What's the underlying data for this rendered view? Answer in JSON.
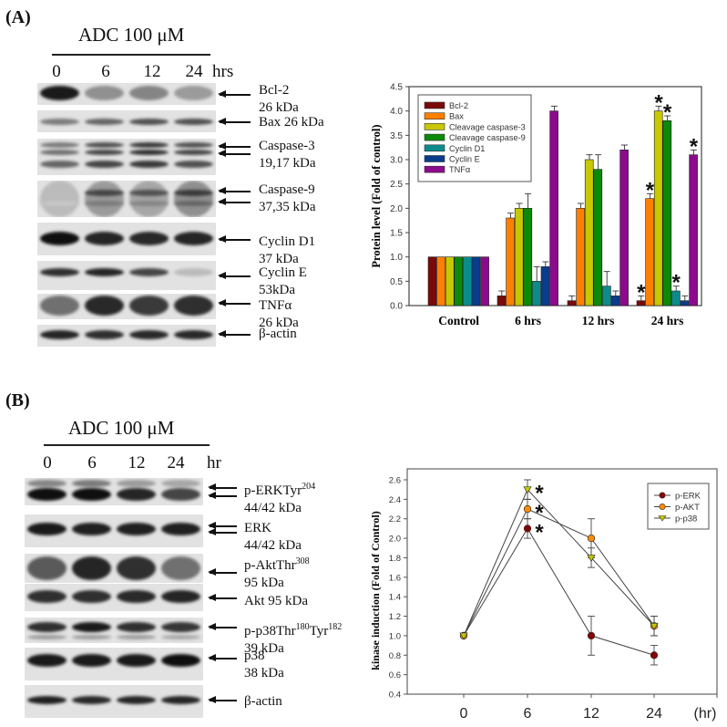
{
  "panels": {
    "A": {
      "label": "(A)",
      "treatment": "ADC 100 μM",
      "lanes": [
        "0",
        "6",
        "12",
        "24"
      ],
      "lane_unit": "hrs",
      "blots": [
        {
          "name": "bcl2",
          "line1": "Bcl-2",
          "line2": "26 kDa",
          "arrows": 1
        },
        {
          "name": "bax",
          "line1": "Bax 26 kDa",
          "line2": "",
          "arrows": 1
        },
        {
          "name": "caspase3",
          "line1": "Caspase-3",
          "line2": "19,17 kDa",
          "arrows": 2
        },
        {
          "name": "caspase9",
          "line1": "Caspase-9",
          "line2": "37,35 kDa",
          "arrows": 2
        },
        {
          "name": "cyclin-d1",
          "line1": "Cyclin D1",
          "line2": "37 kDa",
          "arrows": 1
        },
        {
          "name": "cyclin-e",
          "line1": "Cyclin E",
          "line2": "53kDa",
          "arrows": 1
        },
        {
          "name": "tnfa",
          "line1": "TNFα",
          "line2": "26 kDa",
          "arrows": 1
        },
        {
          "name": "beta-actin",
          "line1": "β-actin",
          "line2": "",
          "arrows": 1
        }
      ]
    },
    "B": {
      "label": "(B)",
      "treatment": "ADC 100 μM",
      "lanes": [
        "0",
        "6",
        "12",
        "24"
      ],
      "lane_unit": "hr",
      "blots": [
        {
          "name": "p-erk",
          "line1": "p-ERKTyr",
          "sup1": "204",
          "line2": "44/42 kDa",
          "arrows": 2
        },
        {
          "name": "erk",
          "line1": "ERK",
          "line2": "44/42 kDa",
          "arrows": 2
        },
        {
          "name": "p-akt",
          "line1": "p-AktThr",
          "sup1": "308",
          "line2": "95 kDa",
          "arrows": 1
        },
        {
          "name": "akt",
          "line1": "Akt 95 kDa",
          "line2": "",
          "arrows": 1
        },
        {
          "name": "p-p38",
          "line1": "p-p38Thr",
          "sup1": "180",
          "line1b": "Tyr",
          "sup2": "182",
          "line2": "39 kDa",
          "arrows": 1
        },
        {
          "name": "p38",
          "line1": "p38",
          "line2": "38 kDa",
          "arrows": 1
        },
        {
          "name": "beta-actin",
          "line1": "β-actin",
          "line2": "",
          "arrows": 1
        }
      ]
    }
  },
  "chart_data": [
    {
      "type": "bar",
      "title": "",
      "xlabel": "",
      "ylabel": "Protein level (Fold of control)",
      "ylim": [
        0,
        4.5
      ],
      "yticks": [
        "0.0",
        "0.5",
        "1.0",
        "1.5",
        "2.0",
        "2.5",
        "3.0",
        "3.5",
        "4.0",
        "4.5"
      ],
      "categories": [
        "Control",
        "6 hrs",
        "12 hrs",
        "24 hrs"
      ],
      "legend_position": "upper left",
      "grid": false,
      "series": [
        {
          "name": "Bcl-2",
          "color": "#7a0a0a",
          "values": [
            1.0,
            0.2,
            0.1,
            0.1
          ],
          "errors": [
            0,
            0.1,
            0.1,
            0.1
          ],
          "significant": [
            false,
            false,
            false,
            true
          ]
        },
        {
          "name": "Bax",
          "color": "#ff8000",
          "values": [
            1.0,
            1.8,
            2.0,
            2.2
          ],
          "errors": [
            0,
            0.1,
            0.1,
            0.1
          ],
          "significant": [
            false,
            false,
            false,
            true
          ]
        },
        {
          "name": "Cleavage caspase-3",
          "color": "#c8c800",
          "values": [
            1.0,
            2.0,
            3.0,
            4.0
          ],
          "errors": [
            0,
            0.1,
            0.1,
            0.1
          ],
          "significant": [
            false,
            false,
            false,
            true
          ]
        },
        {
          "name": "Cleavage caspase-9",
          "color": "#0a8a0a",
          "values": [
            1.0,
            2.0,
            2.8,
            3.8
          ],
          "errors": [
            0,
            0.3,
            0.3,
            0.1
          ],
          "significant": [
            false,
            false,
            false,
            true
          ]
        },
        {
          "name": "Cyclin D1",
          "color": "#0a8c8c",
          "values": [
            1.0,
            0.5,
            0.4,
            0.3
          ],
          "errors": [
            0,
            0.3,
            0.3,
            0.1
          ],
          "significant": [
            false,
            false,
            false,
            true
          ]
        },
        {
          "name": "Cyclin E",
          "color": "#0a3c8c",
          "values": [
            1.0,
            0.8,
            0.2,
            0.1
          ],
          "errors": [
            0,
            0.1,
            0.1,
            0.1
          ],
          "significant": [
            false,
            false,
            false,
            false
          ]
        },
        {
          "name": "TNFα",
          "color": "#8c0a8c",
          "values": [
            1.0,
            4.0,
            3.2,
            3.1
          ],
          "errors": [
            0,
            0.1,
            0.1,
            0.1
          ],
          "significant": [
            false,
            false,
            false,
            true
          ]
        }
      ]
    },
    {
      "type": "line",
      "title": "",
      "xlabel": "(hr)",
      "ylabel": "kinase induction (Fold of Control)",
      "ylim": [
        0.4,
        2.6
      ],
      "yticks": [
        "0.4",
        "0.6",
        "0.8",
        "1.0",
        "1.2",
        "1.4",
        "1.6",
        "1.8",
        "2.0",
        "2.2",
        "2.4",
        "2.6"
      ],
      "x": [
        0,
        6,
        12,
        24
      ],
      "xticks": [
        "0",
        "6",
        "12",
        "24"
      ],
      "legend_position": "upper right",
      "grid": false,
      "series": [
        {
          "name": "p-ERK",
          "color": "#8b0000",
          "marker": "circle",
          "values": [
            1.0,
            2.1,
            1.0,
            0.8
          ],
          "errors": [
            0,
            0.1,
            0.2,
            0.1
          ],
          "significant": [
            false,
            true,
            false,
            false
          ]
        },
        {
          "name": "p-AKT",
          "color": "#ff8c00",
          "marker": "circle",
          "values": [
            1.0,
            2.3,
            2.0,
            1.1
          ],
          "errors": [
            0,
            0.1,
            0.2,
            0.1
          ],
          "significant": [
            false,
            true,
            false,
            false
          ]
        },
        {
          "name": "p-p38",
          "color": "#c8c800",
          "marker": "triangle-down",
          "values": [
            1.0,
            2.5,
            1.8,
            1.1
          ],
          "errors": [
            0,
            0.1,
            0.1,
            0.1
          ],
          "significant": [
            false,
            true,
            false,
            false
          ]
        }
      ]
    }
  ]
}
